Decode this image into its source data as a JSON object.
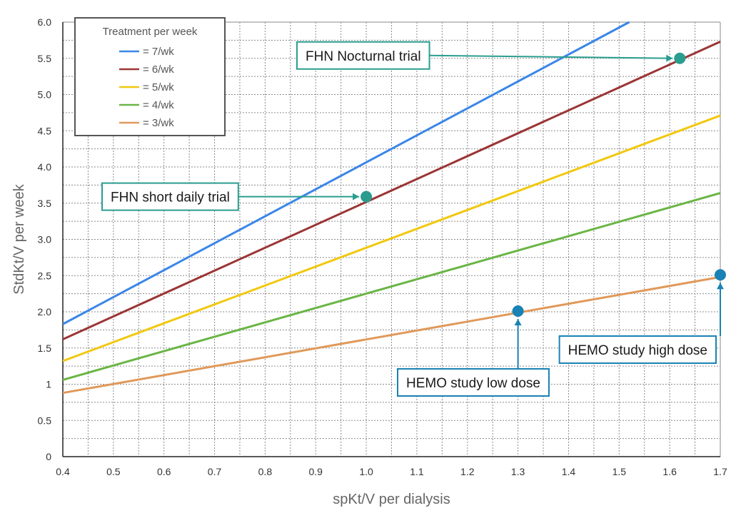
{
  "chart_data": {
    "type": "line",
    "xlabel": "spKt/V per dialysis",
    "ylabel": "StdKt/V per week",
    "xlim": [
      0.4,
      1.7
    ],
    "ylim": [
      0,
      6.0
    ],
    "x_ticks": [
      "0.4",
      "0.5",
      "0.6",
      "0.7",
      "0.8",
      "0.9",
      "1.0",
      "1.1",
      "1.2",
      "1.3",
      "1.4",
      "1.5",
      "1.6",
      "1.7"
    ],
    "y_ticks": [
      {
        "value": 0,
        "label": "0"
      },
      {
        "value": 0.5,
        "label": "0.5"
      },
      {
        "value": 1.0,
        "label": "1"
      },
      {
        "value": 1.5,
        "label": "1.5"
      },
      {
        "value": 2.0,
        "label": "2.0"
      },
      {
        "value": 2.5,
        "label": "2.5"
      },
      {
        "value": 3.0,
        "label": "3.0"
      },
      {
        "value": 3.5,
        "label": "3.5"
      },
      {
        "value": 4.0,
        "label": "4.0"
      },
      {
        "value": 4.5,
        "label": "4.5"
      },
      {
        "value": 5.0,
        "label": "5.0"
      },
      {
        "value": 5.5,
        "label": "5.5"
      },
      {
        "value": 6.0,
        "label": "6.0"
      }
    ],
    "grid": true,
    "legend": {
      "title": "Treatment per week",
      "placement": "top-left"
    },
    "series": [
      {
        "name": "= 7/wk",
        "color": "#3a86e8",
        "x": [
          0.4,
          1.52
        ],
        "y": [
          1.83,
          6.0
        ]
      },
      {
        "name": "= 6/wk",
        "color": "#9b3535",
        "x": [
          0.4,
          1.7
        ],
        "y": [
          1.62,
          5.73
        ]
      },
      {
        "name": "= 5/wk",
        "color": "#f2c80f",
        "x": [
          0.4,
          1.7
        ],
        "y": [
          1.32,
          4.71
        ]
      },
      {
        "name": "= 4/wk",
        "color": "#6ab545",
        "x": [
          0.4,
          1.7
        ],
        "y": [
          1.06,
          3.64
        ]
      },
      {
        "name": "= 3/wk",
        "color": "#e0995a",
        "x": [
          0.4,
          1.7
        ],
        "y": [
          0.88,
          2.48
        ]
      }
    ],
    "annotations": [
      {
        "label": "FHN Nocturnal trial",
        "x": 1.62,
        "y": 5.5,
        "color": "#2a9d8f",
        "box": "top-middle",
        "arrow": "left"
      },
      {
        "label": "FHN short daily trial",
        "x": 1.0,
        "y": 3.59,
        "color": "#2a9d8f",
        "box": "left",
        "arrow": "left"
      },
      {
        "label": "HEMO study low dose",
        "x": 1.3,
        "y": 2.01,
        "color": "#1a82b4",
        "box": "below",
        "arrow": "down"
      },
      {
        "label": "HEMO study high dose",
        "x": 1.7,
        "y": 2.51,
        "color": "#1a82b4",
        "box": "below-left",
        "arrow": "down"
      }
    ]
  }
}
